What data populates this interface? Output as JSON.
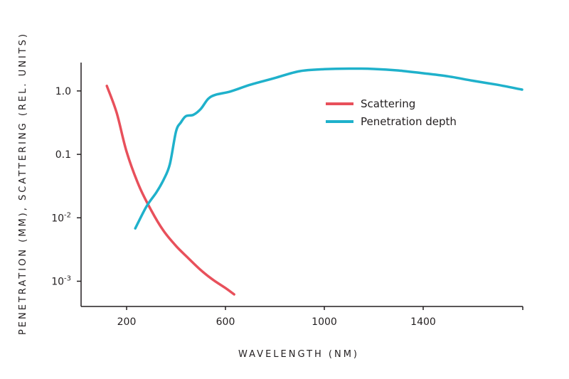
{
  "chart_data": {
    "type": "line",
    "title": "",
    "xlabel": "WAVELENGTH (NM)",
    "ylabel": "PENETRATION (MM), SCATTERING (REL. UNITS)",
    "x_ticks": [
      200,
      600,
      1000,
      1400
    ],
    "y_ticks": [
      {
        "value": 1.0,
        "label": "1.0",
        "sup": ""
      },
      {
        "value": 0.1,
        "label": "0.1",
        "sup": ""
      },
      {
        "value": 0.01,
        "label": "10",
        "sup": "-2"
      },
      {
        "value": 0.001,
        "label": "10",
        "sup": "-3"
      }
    ],
    "xlim": [
      80,
      1850
    ],
    "ylim": [
      0.0004,
      2.8
    ],
    "y_scale": "log",
    "grid": false,
    "legend_position": "top-right",
    "series": [
      {
        "name": "Scattering",
        "color": "#e8505b",
        "points": [
          [
            120,
            1.2
          ],
          [
            160,
            0.45
          ],
          [
            200,
            0.11
          ],
          [
            250,
            0.032
          ],
          [
            300,
            0.013
          ],
          [
            350,
            0.0062
          ],
          [
            400,
            0.0036
          ],
          [
            450,
            0.0023
          ],
          [
            500,
            0.0015
          ],
          [
            550,
            0.00105
          ],
          [
            600,
            0.00078
          ],
          [
            635,
            0.00062
          ]
        ]
      },
      {
        "name": "Penetration depth",
        "color": "#1fb1cb",
        "points": [
          [
            235,
            0.0068
          ],
          [
            280,
            0.015
          ],
          [
            320,
            0.025
          ],
          [
            350,
            0.04
          ],
          [
            375,
            0.07
          ],
          [
            400,
            0.23
          ],
          [
            420,
            0.32
          ],
          [
            440,
            0.4
          ],
          [
            470,
            0.42
          ],
          [
            500,
            0.52
          ],
          [
            530,
            0.75
          ],
          [
            560,
            0.87
          ],
          [
            620,
            0.98
          ],
          [
            700,
            1.25
          ],
          [
            800,
            1.6
          ],
          [
            900,
            2.05
          ],
          [
            1000,
            2.2
          ],
          [
            1100,
            2.25
          ],
          [
            1200,
            2.22
          ],
          [
            1300,
            2.1
          ],
          [
            1400,
            1.9
          ],
          [
            1500,
            1.7
          ],
          [
            1600,
            1.45
          ],
          [
            1700,
            1.25
          ],
          [
            1800,
            1.05
          ]
        ]
      }
    ]
  }
}
